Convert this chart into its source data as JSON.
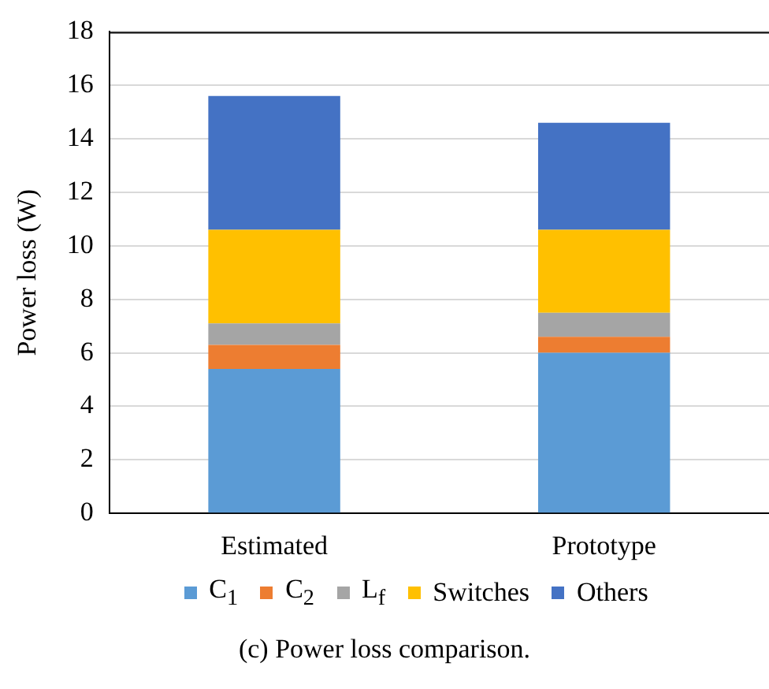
{
  "chart_data": {
    "type": "bar",
    "stacked": true,
    "ylabel": "Power loss (W)",
    "categories": [
      "Estimated",
      "Prototype"
    ],
    "series": [
      {
        "name": "C$_{1}$",
        "color": "#5b9bd5",
        "values": [
          5.4,
          6.0
        ]
      },
      {
        "name": "C$_{2}$",
        "color": "#ed7d31",
        "values": [
          0.9,
          0.6
        ]
      },
      {
        "name": "L$_{f}$",
        "color": "#a5a5a5",
        "values": [
          0.8,
          0.9
        ]
      },
      {
        "name": "Switches",
        "color": "#ffc000",
        "values": [
          3.5,
          3.1
        ]
      },
      {
        "name": "Others",
        "color": "#4472c4",
        "values": [
          5.0,
          4.0
        ]
      }
    ],
    "ylim": [
      0,
      18
    ],
    "yticks": [
      0,
      2,
      4,
      6,
      8,
      10,
      12,
      14,
      16,
      18
    ],
    "grid": "y",
    "legend": "bottom",
    "annotations": [
      "(c) Power loss comparison."
    ]
  }
}
